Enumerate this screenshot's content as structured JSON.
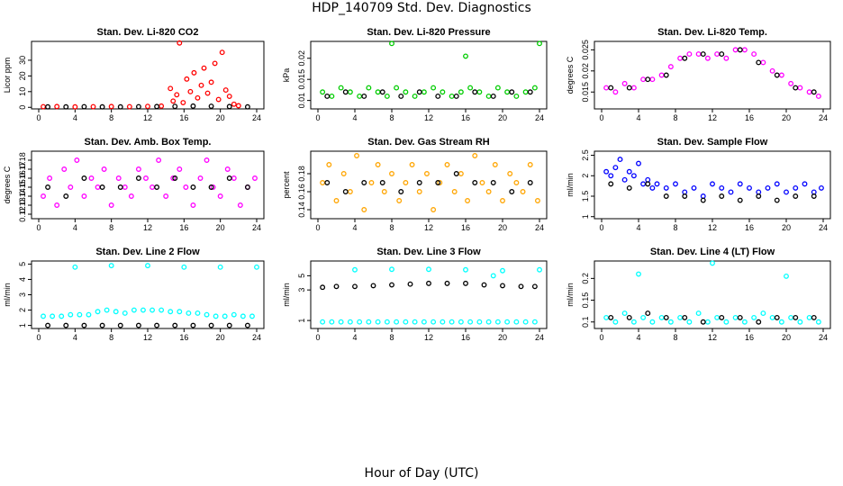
{
  "title": "HDP_140709  Std. Dev. Diagnostics",
  "xlabel": "Hour of Day (UTC)",
  "chart_data": [
    {
      "type": "scatter",
      "title": "Stan. Dev. Li-820 CO2",
      "ylabel": "Licor ppm",
      "color": "#ff0000",
      "xlim": [
        0,
        24
      ],
      "ylim": [
        -1,
        42
      ],
      "xticks": [
        "0",
        "4",
        "8",
        "12",
        "16",
        "20",
        "24"
      ],
      "yticks": [
        0,
        10,
        20,
        30
      ],
      "series": [
        {
          "x": [
            0.5,
            2,
            4,
            6,
            8,
            10,
            12,
            13.5
          ],
          "y": [
            0.4,
            0.5,
            0.3,
            0.4,
            0.5,
            0.4,
            0.6,
            0.8
          ]
        },
        {
          "x": [
            14.5,
            14.8,
            15.2,
            15.5,
            15.9,
            16.3,
            16.7,
            17.1,
            17.5,
            17.9,
            18.2,
            18.6,
            19,
            19.4,
            19.8,
            20.2,
            20.6,
            21,
            21.5,
            22
          ],
          "y": [
            12,
            4,
            8,
            41,
            3,
            18,
            10,
            22,
            6,
            14,
            25,
            9,
            16,
            28,
            5,
            35,
            11,
            7,
            2,
            1
          ]
        },
        {
          "x": [
            1,
            3,
            5,
            7,
            9,
            11,
            13,
            15,
            17,
            19,
            21,
            23
          ],
          "y": [
            0.3,
            0.3,
            0.4,
            0.3,
            0.3,
            0.4,
            0.5,
            0.6,
            0.8,
            0.7,
            0.5,
            0.3
          ]
        }
      ],
      "series_colors": [
        "#ff0000",
        "#ff0000",
        "#000000"
      ]
    },
    {
      "type": "scatter",
      "title": "Stan. Dev. Li-820 Pressure",
      "ylabel": "kPa",
      "color": "#00cc00",
      "xlim": [
        0,
        24
      ],
      "ylim": [
        0.008,
        0.024
      ],
      "xticks": [
        "0",
        "4",
        "8",
        "12",
        "16",
        "20",
        "24"
      ],
      "yticks": [
        0.01,
        0.015,
        0.02
      ],
      "series": [
        {
          "x": [
            0.5,
            1.5,
            2.5,
            3.5,
            4.5,
            5.5,
            6.5,
            7.5,
            8,
            8.5,
            9.5,
            10.5,
            11.5,
            12.5,
            13.5,
            14.5,
            15.5,
            16,
            16.5,
            17.5,
            18.5,
            19.5,
            20.5,
            21.5,
            22.5,
            23.5,
            24
          ],
          "y": [
            0.012,
            0.011,
            0.013,
            0.012,
            0.011,
            0.013,
            0.012,
            0.011,
            0.0235,
            0.013,
            0.012,
            0.011,
            0.012,
            0.013,
            0.012,
            0.011,
            0.012,
            0.0205,
            0.013,
            0.012,
            0.011,
            0.013,
            0.012,
            0.011,
            0.012,
            0.013,
            0.0235
          ]
        },
        {
          "x": [
            1,
            3,
            5,
            7,
            9,
            11,
            13,
            15,
            17,
            19,
            21,
            23
          ],
          "y": [
            0.011,
            0.012,
            0.011,
            0.012,
            0.011,
            0.012,
            0.011,
            0.011,
            0.012,
            0.011,
            0.012,
            0.012
          ]
        }
      ],
      "series_colors": [
        "#00cc00",
        "#000000"
      ]
    },
    {
      "type": "scatter",
      "title": "Stan. Dev. Li-820 Temp.",
      "ylabel": "degrees C",
      "color": "#ff00ff",
      "xlim": [
        0,
        24
      ],
      "ylim": [
        0.011,
        0.027
      ],
      "xticks": [
        "0",
        "4",
        "8",
        "12",
        "16",
        "20",
        "24"
      ],
      "yticks": [
        0.015,
        0.02,
        0.025
      ],
      "series": [
        {
          "x": [
            0.5,
            1.5,
            2.5,
            3.5,
            4.5,
            5.5,
            6.5,
            7.5,
            8.5,
            9.5,
            10.5,
            11.5,
            12.5,
            13.5,
            14.5,
            15.5,
            16.5,
            17.5,
            18.5,
            19.5,
            20.5,
            21.5,
            22.5,
            23.5
          ],
          "y": [
            0.016,
            0.015,
            0.017,
            0.016,
            0.018,
            0.018,
            0.019,
            0.021,
            0.023,
            0.024,
            0.024,
            0.023,
            0.024,
            0.023,
            0.025,
            0.025,
            0.024,
            0.022,
            0.02,
            0.019,
            0.017,
            0.016,
            0.015,
            0.014
          ]
        },
        {
          "x": [
            1,
            3,
            5,
            7,
            9,
            11,
            13,
            15,
            17,
            19,
            21,
            23
          ],
          "y": [
            0.016,
            0.016,
            0.018,
            0.019,
            0.023,
            0.024,
            0.024,
            0.025,
            0.022,
            0.019,
            0.016,
            0.015
          ]
        }
      ],
      "series_colors": [
        "#ff00ff",
        "#000000"
      ]
    },
    {
      "type": "scatter",
      "title": "Stan. Dev. Amb. Box Temp.",
      "ylabel": "degrees C",
      "color": "#ff00ff",
      "xlim": [
        0,
        24
      ],
      "ylim": [
        0.115,
        0.19
      ],
      "xticks": [
        "0",
        "4",
        "8",
        "12",
        "16",
        "20",
        "24"
      ],
      "yticks": [
        0.12,
        0.13,
        0.14,
        0.15,
        0.16,
        0.17,
        0.18
      ],
      "series": [
        {
          "x": [
            0.5,
            1.2,
            2,
            2.8,
            3.5,
            4.2,
            5,
            5.8,
            6.5,
            7.2,
            8,
            8.8,
            9.5,
            10.2,
            11,
            11.8,
            12.5,
            13.2,
            14,
            14.8,
            15.5,
            16.2,
            17,
            17.8,
            18.5,
            19.2,
            20,
            20.8,
            21.5,
            22.2,
            23,
            23.8
          ],
          "y": [
            0.14,
            0.16,
            0.13,
            0.17,
            0.15,
            0.18,
            0.14,
            0.16,
            0.15,
            0.17,
            0.13,
            0.16,
            0.15,
            0.14,
            0.17,
            0.16,
            0.15,
            0.18,
            0.14,
            0.16,
            0.17,
            0.15,
            0.13,
            0.16,
            0.18,
            0.15,
            0.14,
            0.17,
            0.16,
            0.13,
            0.15,
            0.16
          ]
        },
        {
          "x": [
            1,
            3,
            5,
            7,
            9,
            11,
            13,
            15,
            17,
            19,
            21,
            23
          ],
          "y": [
            0.15,
            0.14,
            0.16,
            0.15,
            0.15,
            0.16,
            0.15,
            0.16,
            0.15,
            0.15,
            0.16,
            0.15
          ]
        }
      ],
      "series_colors": [
        "#ff00ff",
        "#000000"
      ]
    },
    {
      "type": "scatter",
      "title": "Stan. Dev. Gas Stream RH",
      "ylabel": "percent",
      "color": "#ffa500",
      "xlim": [
        0,
        24
      ],
      "ylim": [
        0.13,
        0.205
      ],
      "xticks": [
        "0",
        "4",
        "8",
        "12",
        "16",
        "20",
        "24"
      ],
      "yticks": [
        0.14,
        0.16,
        0.18
      ],
      "series": [
        {
          "x": [
            0.5,
            1.2,
            2,
            2.8,
            3.5,
            4.2,
            5,
            5.8,
            6.5,
            7.2,
            8,
            8.8,
            9.5,
            10.2,
            11,
            11.8,
            12.5,
            13.2,
            14,
            14.8,
            15.5,
            16.2,
            17,
            17.8,
            18.5,
            19.2,
            20,
            20.8,
            21.5,
            22.2,
            23,
            23.8
          ],
          "y": [
            0.17,
            0.19,
            0.15,
            0.18,
            0.16,
            0.2,
            0.14,
            0.17,
            0.19,
            0.16,
            0.18,
            0.15,
            0.17,
            0.19,
            0.16,
            0.18,
            0.14,
            0.17,
            0.19,
            0.16,
            0.18,
            0.15,
            0.2,
            0.17,
            0.16,
            0.19,
            0.15,
            0.18,
            0.17,
            0.16,
            0.19,
            0.15
          ]
        },
        {
          "x": [
            1,
            3,
            5,
            7,
            9,
            11,
            13,
            15,
            17,
            19,
            21,
            23
          ],
          "y": [
            0.17,
            0.16,
            0.17,
            0.17,
            0.16,
            0.17,
            0.17,
            0.18,
            0.17,
            0.17,
            0.16,
            0.17
          ]
        }
      ],
      "series_colors": [
        "#ffa500",
        "#000000"
      ]
    },
    {
      "type": "scatter",
      "title": "Stan. Dev. Sample Flow",
      "ylabel": "ml/min",
      "color": "#0000ff",
      "xlim": [
        0,
        24
      ],
      "ylim": [
        0.95,
        2.6
      ],
      "xticks": [
        "0",
        "4",
        "8",
        "12",
        "16",
        "20",
        "24"
      ],
      "yticks": [
        1.0,
        1.5,
        2.0,
        2.5
      ],
      "series": [
        {
          "x": [
            0.5,
            1,
            1.5,
            2,
            2.5,
            3,
            3.5,
            4,
            4.5,
            5,
            5.5,
            6,
            7,
            8,
            9,
            10,
            11,
            12,
            13,
            14,
            15,
            16,
            17,
            18,
            19,
            20,
            21,
            22,
            23,
            23.8
          ],
          "y": [
            2.1,
            2.0,
            2.2,
            2.4,
            1.9,
            2.1,
            2.0,
            2.3,
            1.8,
            1.9,
            1.7,
            1.8,
            1.7,
            1.8,
            1.6,
            1.7,
            1.5,
            1.8,
            1.7,
            1.6,
            1.8,
            1.7,
            1.6,
            1.7,
            1.8,
            1.6,
            1.7,
            1.8,
            1.6,
            1.7
          ]
        },
        {
          "x": [
            1,
            3,
            5,
            7,
            9,
            11,
            13,
            15,
            17,
            19,
            21,
            23
          ],
          "y": [
            1.8,
            1.7,
            1.8,
            1.5,
            1.5,
            1.4,
            1.5,
            1.4,
            1.5,
            1.4,
            1.5,
            1.5
          ]
        }
      ],
      "series_colors": [
        "#0000ff",
        "#000000"
      ]
    },
    {
      "type": "scatter",
      "title": "Stan. Dev. Line 2 Flow",
      "ylabel": "ml/min",
      "color": "#00ffff",
      "xlim": [
        0,
        24
      ],
      "ylim": [
        0.8,
        5.2
      ],
      "xticks": [
        "0",
        "4",
        "8",
        "12",
        "16",
        "20",
        "24"
      ],
      "yticks": [
        1,
        2,
        3,
        4,
        5
      ],
      "series": [
        {
          "x": [
            0.5,
            1.5,
            2.5,
            3.5,
            4.5,
            5.5,
            6.5,
            7.5,
            8.5,
            9.5,
            10.5,
            11.5,
            12.5,
            13.5,
            14.5,
            15.5,
            16.5,
            17.5,
            18.5,
            19.5,
            20.5,
            21.5,
            22.5,
            23.5
          ],
          "y": [
            1.6,
            1.6,
            1.6,
            1.7,
            1.7,
            1.7,
            1.9,
            2.0,
            1.9,
            1.8,
            2.0,
            2.0,
            2.0,
            2.0,
            1.9,
            1.9,
            1.8,
            1.8,
            1.7,
            1.6,
            1.6,
            1.7,
            1.6,
            1.6
          ]
        },
        {
          "x": [
            4,
            8,
            12,
            16,
            20,
            24
          ],
          "y": [
            4.8,
            4.9,
            4.9,
            4.8,
            4.8,
            4.8
          ]
        },
        {
          "x": [
            1,
            3,
            5,
            7,
            9,
            11,
            13,
            15,
            17,
            19,
            21,
            23
          ],
          "y": [
            1.0,
            1.0,
            1.0,
            1.0,
            1.0,
            1.0,
            1.0,
            1.0,
            1.0,
            1.0,
            1.0,
            1.0
          ]
        }
      ],
      "series_colors": [
        "#00ffff",
        "#00ffff",
        "#000000"
      ]
    },
    {
      "type": "scatter",
      "title": "Stan. Dev. Line 3 Flow",
      "ylabel": "ml/min",
      "color": "#00ffff",
      "xlim": [
        0,
        24
      ],
      "ylim": [
        0.75,
        8.5
      ],
      "log_y": true,
      "xticks": [
        "0",
        "4",
        "8",
        "12",
        "16",
        "20",
        "24"
      ],
      "yticks": [
        1,
        3,
        5
      ],
      "series": [
        {
          "x": [
            0.5,
            1.5,
            2.5,
            3.5,
            4.5,
            5.5,
            6.5,
            7.5,
            8.5,
            9.5,
            10.5,
            11.5,
            12.5,
            13.5,
            14.5,
            15.5,
            16.5,
            17.5,
            18.5,
            19.5,
            20.5,
            21.5,
            22.5,
            23.5
          ],
          "y": [
            0.95,
            0.95,
            0.95,
            0.95,
            0.95,
            0.95,
            0.95,
            0.95,
            0.95,
            0.95,
            0.95,
            0.95,
            0.95,
            0.95,
            0.95,
            0.95,
            0.95,
            0.95,
            0.95,
            0.95,
            0.95,
            0.95,
            0.95,
            0.95
          ]
        },
        {
          "x": [
            4,
            8,
            12,
            16,
            19,
            20,
            24
          ],
          "y": [
            6.2,
            6.3,
            6.3,
            6.2,
            5.0,
            6.0,
            6.2
          ]
        },
        {
          "x": [
            0.5,
            2,
            4,
            6,
            8,
            10,
            12,
            14,
            16,
            18,
            20,
            22,
            23.5
          ],
          "y": [
            3.3,
            3.4,
            3.4,
            3.5,
            3.6,
            3.7,
            3.8,
            3.8,
            3.8,
            3.6,
            3.5,
            3.4,
            3.4
          ]
        }
      ],
      "series_colors": [
        "#00ffff",
        "#00ffff",
        "#000000"
      ]
    },
    {
      "type": "scatter",
      "title": "Stan. Dev. Line 4 (LT) Flow",
      "ylabel": "ml/min",
      "color": "#00ffff",
      "xlim": [
        0,
        24
      ],
      "ylim": [
        0.085,
        0.24
      ],
      "xticks": [
        "0",
        "4",
        "8",
        "12",
        "16",
        "20",
        "24"
      ],
      "yticks": [
        0.1,
        0.15,
        0.2
      ],
      "series": [
        {
          "x": [
            0.5,
            1.5,
            2.5,
            3.5,
            4.5,
            5.5,
            6.5,
            7.5,
            8.5,
            9.5,
            10.5,
            11.5,
            12.5,
            13.5,
            14.5,
            15.5,
            16.5,
            17.5,
            18.5,
            19.5,
            20.5,
            21.5,
            22.5,
            23.5
          ],
          "y": [
            0.11,
            0.1,
            0.12,
            0.1,
            0.11,
            0.1,
            0.11,
            0.1,
            0.11,
            0.1,
            0.12,
            0.1,
            0.11,
            0.1,
            0.11,
            0.1,
            0.11,
            0.12,
            0.11,
            0.1,
            0.11,
            0.1,
            0.11,
            0.1
          ]
        },
        {
          "x": [
            4,
            12,
            20
          ],
          "y": [
            0.21,
            0.235,
            0.205
          ]
        },
        {
          "x": [
            1,
            3,
            5,
            7,
            9,
            11,
            13,
            15,
            17,
            19,
            21,
            23
          ],
          "y": [
            0.11,
            0.11,
            0.12,
            0.11,
            0.11,
            0.1,
            0.11,
            0.11,
            0.1,
            0.11,
            0.11,
            0.11
          ]
        }
      ],
      "series_colors": [
        "#00ffff",
        "#00ffff",
        "#000000"
      ]
    }
  ]
}
